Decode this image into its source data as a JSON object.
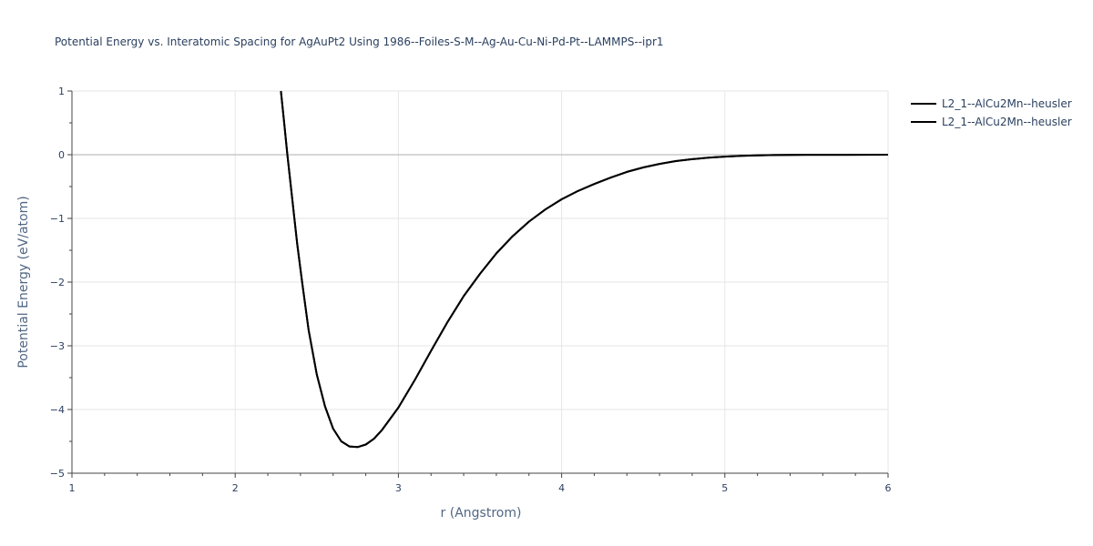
{
  "chart_data": {
    "type": "line",
    "title": "Potential Energy vs. Interatomic Spacing for AgAuPt2 Using 1986--Foiles-S-M--Ag-Au-Cu-Ni-Pd-Pt--LAMMPS--ipr1",
    "xlabel": "r (Angstrom)",
    "ylabel": "Potential Energy (eV/atom)",
    "xlim": [
      1,
      6
    ],
    "ylim": [
      -5,
      1
    ],
    "xticks": [
      1,
      2,
      3,
      4,
      5,
      6
    ],
    "yticks": [
      1,
      0,
      -1,
      -2,
      -3,
      -4,
      -5
    ],
    "ytick_labels": [
      "1",
      "0",
      "−1",
      "−2",
      "−3",
      "−4",
      "−5"
    ],
    "grid": true,
    "legend_position": "top-right",
    "colors": {
      "line": "#000000",
      "grid": "#e6e6e6",
      "zeroline": "#c8c8c8",
      "text": "#2a3f5f",
      "axis_title": "#506784"
    },
    "series": [
      {
        "name": "L2_1--AlCu2Mn--heusler",
        "x": [
          2.28,
          2.3,
          2.32,
          2.35,
          2.38,
          2.41,
          2.45,
          2.5,
          2.55,
          2.6,
          2.65,
          2.7,
          2.75,
          2.8,
          2.85,
          2.9,
          3.0,
          3.1,
          3.2,
          3.3,
          3.4,
          3.5,
          3.6,
          3.7,
          3.8,
          3.9,
          4.0,
          4.1,
          4.2,
          4.3,
          4.4,
          4.5,
          4.6,
          4.7,
          4.8,
          4.9,
          5.0,
          5.1,
          5.2,
          5.3,
          5.5,
          5.75,
          6.0
        ],
        "y": [
          1.0,
          0.5,
          0.0,
          -0.7,
          -1.4,
          -2.0,
          -2.75,
          -3.45,
          -3.95,
          -4.3,
          -4.5,
          -4.58,
          -4.59,
          -4.55,
          -4.46,
          -4.32,
          -3.97,
          -3.54,
          -3.08,
          -2.63,
          -2.22,
          -1.87,
          -1.55,
          -1.28,
          -1.05,
          -0.86,
          -0.7,
          -0.57,
          -0.46,
          -0.36,
          -0.27,
          -0.2,
          -0.145,
          -0.1,
          -0.07,
          -0.045,
          -0.03,
          -0.018,
          -0.01,
          -0.006,
          -0.002,
          -0.001,
          0.0
        ]
      },
      {
        "name": "L2_1--AlCu2Mn--heusler",
        "x": [
          2.28,
          2.3,
          2.32,
          2.35,
          2.38,
          2.41,
          2.45,
          2.5,
          2.55,
          2.6,
          2.65,
          2.7,
          2.75,
          2.8,
          2.85,
          2.9,
          3.0,
          3.1,
          3.2,
          3.3,
          3.4,
          3.5,
          3.6,
          3.7,
          3.8,
          3.9,
          4.0,
          4.1,
          4.2,
          4.3,
          4.4,
          4.5,
          4.6,
          4.7,
          4.8,
          4.9,
          5.0,
          5.1,
          5.2,
          5.3,
          5.5,
          5.75,
          6.0
        ],
        "y": [
          1.0,
          0.5,
          0.0,
          -0.7,
          -1.4,
          -2.0,
          -2.75,
          -3.45,
          -3.95,
          -4.3,
          -4.5,
          -4.58,
          -4.59,
          -4.55,
          -4.46,
          -4.32,
          -3.97,
          -3.54,
          -3.08,
          -2.63,
          -2.22,
          -1.87,
          -1.55,
          -1.28,
          -1.05,
          -0.86,
          -0.7,
          -0.57,
          -0.46,
          -0.36,
          -0.27,
          -0.2,
          -0.145,
          -0.1,
          -0.07,
          -0.045,
          -0.03,
          -0.018,
          -0.01,
          -0.006,
          -0.002,
          -0.001,
          0.0
        ]
      }
    ]
  }
}
